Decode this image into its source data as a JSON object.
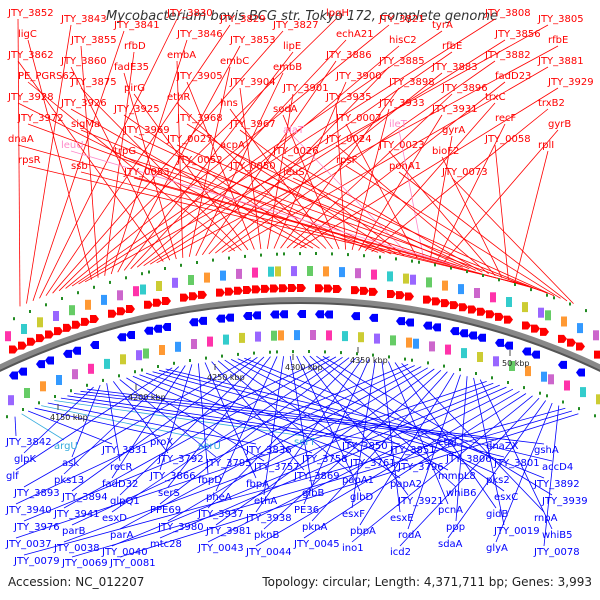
{
  "title": "Mycobacterium bovis BCG str. Tokyo 172, complete genome",
  "footer": {
    "accession": "Accession: NC_012207",
    "stats": "Topology: circular; Length: 4,371,711 bp; Genes: 3,993"
  },
  "colors": {
    "forward": "#ff0000",
    "reverse": "#0000ff",
    "rna_forward": "#ff88c8",
    "rna_reverse": "#33aadd",
    "backbone": "#888888",
    "feature_tick": "#228b22"
  },
  "scale_ticks": [
    "4150 kbp",
    "4200 kbp",
    "4250 kbp",
    "4300 kbp",
    "4350 kbp",
    "50 kbp"
  ],
  "labels_top": [
    "JTY_3852",
    "JTY_3843",
    "JTY_3841",
    "JTY_3830",
    "JTY_3829",
    "JTY_3827",
    "lpqH",
    "JTY_3821",
    "tyrA",
    "JTY_3808",
    "JTY_3805",
    "ligC",
    "JTY_3855",
    "rfbD",
    "JTY_3846",
    "JTY_3853",
    "lipE",
    "echA21",
    "hisC2",
    "rfbE",
    "JTY_3856",
    "rfbE",
    "JTY_3862",
    "JTY_3860",
    "fadE35",
    "embA",
    "embC",
    "embB",
    "JTY_3886",
    "JTY_3885",
    "JTY_3883",
    "JTY_3882",
    "JTY_3881",
    "PE_PGRS62",
    "JTY_3875",
    "pirG",
    "JTY_3905",
    "JTY_3904",
    "JTY_3901",
    "JTY_3900",
    "JTY_3898",
    "JTY_3896",
    "fadD23",
    "JTY_3929",
    "JTY_3928",
    "JTY_3926",
    "JTY_3925",
    "ethR",
    "hns",
    "sodA",
    "JTY_3935",
    "JTY_3933",
    "JTY_3931",
    "trxC",
    "trxB2",
    "JTY_3972",
    "sigMa",
    "JTY_3969",
    "JTY_3968",
    "JTY_3967",
    "alaT",
    "JTY_0007",
    "ileT",
    "gyrA",
    "recF",
    "gyrB",
    "dnaA",
    "leuU",
    "trpG",
    "JTY_0027",
    "acpA",
    "JTY_0026",
    "JTY_0024",
    "JTY_0023",
    "bioF2",
    "JTY_0058",
    "rplI",
    "rpsR",
    "ssb",
    "JTY_0053",
    "JTY_0052",
    "JTY_0050",
    "leuS",
    "rpsF",
    "ponA1",
    "JTY_0073"
  ],
  "labels_bottom": [
    "JTY_3842",
    "argU",
    "JTY_3831",
    "proX",
    "serU",
    "JTY_3836",
    "serT",
    "JTY_3850",
    "JTY_3851",
    "ctpJ",
    "dnaZX",
    "gshA",
    "glpK",
    "ask",
    "recR",
    "JTY_3792",
    "JTY_3795",
    "JTY_3757",
    "JTY_3758",
    "JTY_3761",
    "JTY_3796",
    "JTY_3806",
    "JTY_3801",
    "accD4",
    "glf",
    "pks13",
    "fadD32",
    "JTY_3866",
    "fbpD",
    "fbpA",
    "JTY_3869",
    "papA1",
    "papA2",
    "mmpL8",
    "pks2",
    "JTY_3892",
    "JTY_3893",
    "JTY_3894",
    "glpQ1",
    "serS",
    "pheA",
    "ethA",
    "glbB",
    "glbD",
    "JTY_3921",
    "whiB6",
    "esxC",
    "JTY_3939",
    "JTY_3940",
    "JTY_3941",
    "esxD",
    "PPE69",
    "JTY_3937",
    "JTY_3938",
    "PE36",
    "esxF",
    "esxE",
    "pcnA",
    "gidB",
    "rnpA",
    "JTY_3976",
    "parB",
    "parA",
    "JTY_3980",
    "JTY_3981",
    "pknB",
    "pknA",
    "pbpA",
    "rodA",
    "ppp",
    "JTY_0019",
    "whiB5",
    "JTY_0037",
    "JTY_0038",
    "JTY_0040",
    "mtc28",
    "JTY_0043",
    "JTY_0044",
    "JTY_0045",
    "ino1",
    "icd2",
    "sdaA",
    "glyA",
    "JTY_0078",
    "JTY_0079",
    "JTY_0069",
    "JTY_0081"
  ]
}
